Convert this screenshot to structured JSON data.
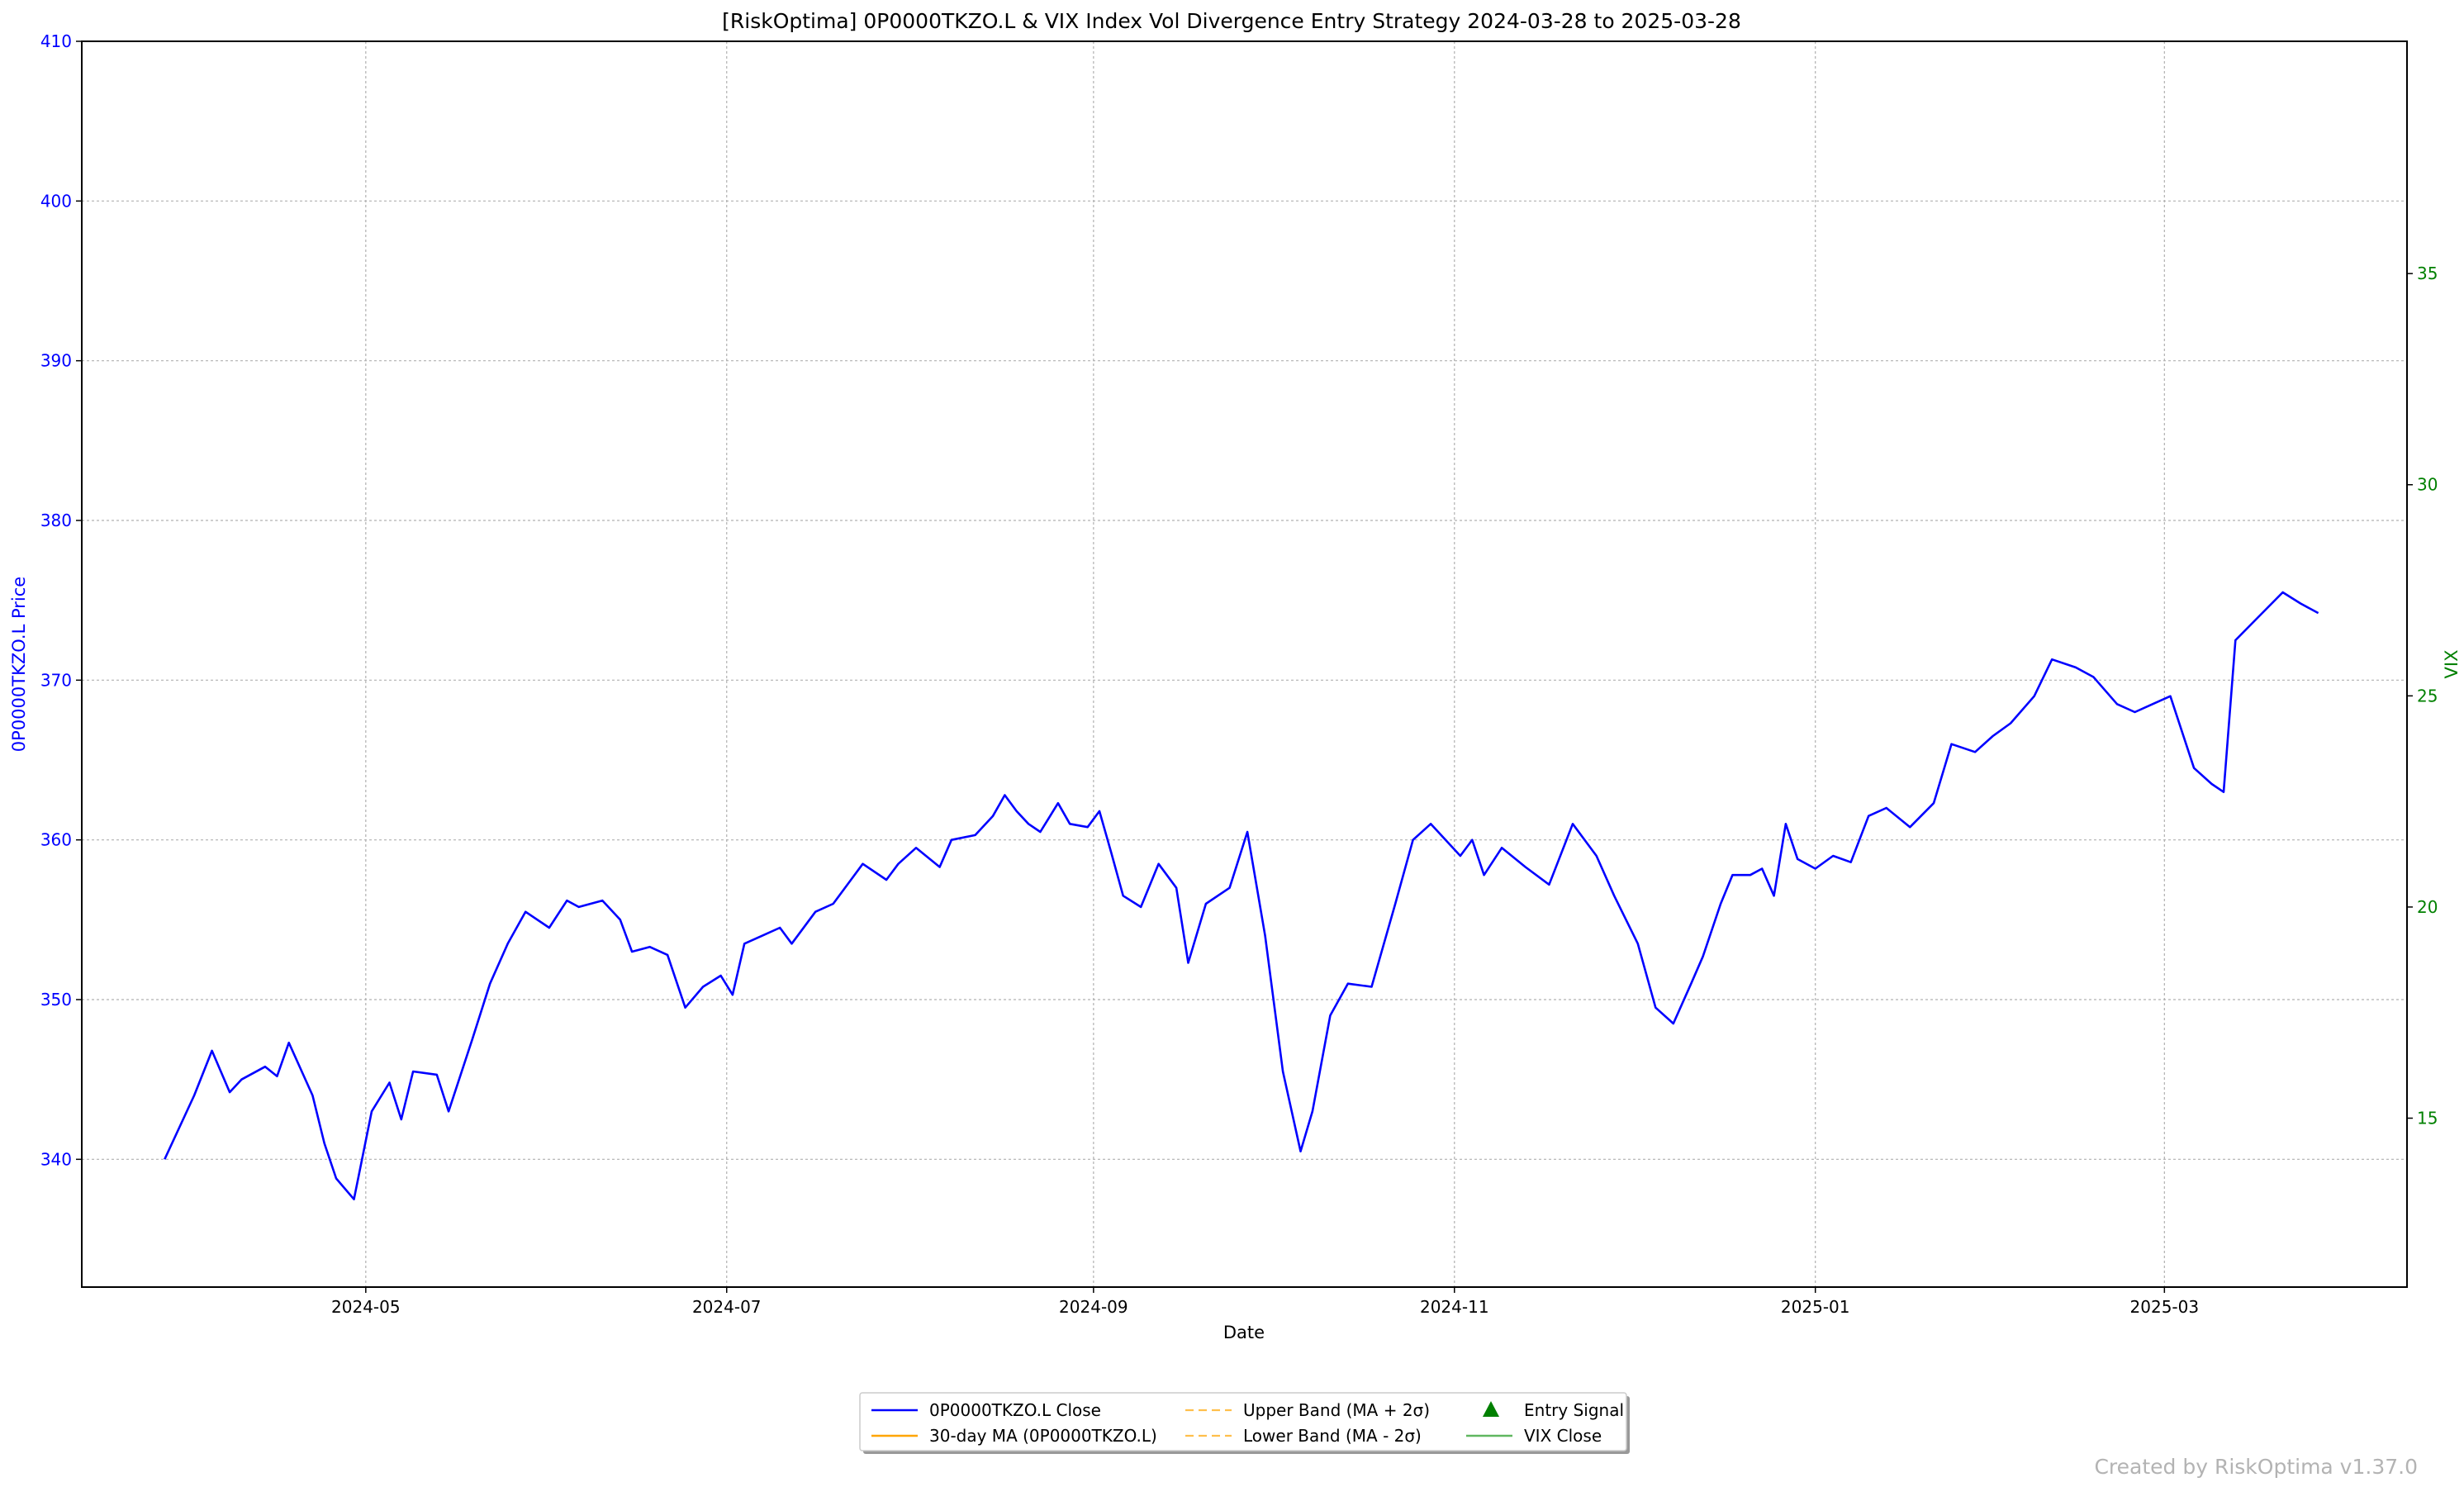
{
  "chart_data": {
    "type": "line",
    "title": "[RiskOptima] 0P0000TKZO.L & VIX Index Vol Divergence Entry Strategy 2024-03-28 to 2025-03-28",
    "xlabel": "Date",
    "ylabel_left": "0P0000TKZO.L Price",
    "ylabel_right": "VIX",
    "ylim_left": [
      332,
      410
    ],
    "ylim_right": [
      11.0,
      40.5
    ],
    "xlim": [
      "2024-03-14",
      "2025-04-11"
    ],
    "yticks_left": [
      340,
      350,
      360,
      370,
      380,
      390,
      400,
      410
    ],
    "yticks_right": [
      15,
      20,
      25,
      30,
      35
    ],
    "xticks": [
      {
        "label": "2024-05",
        "date": "2024-05-01"
      },
      {
        "label": "2024-07",
        "date": "2024-07-01"
      },
      {
        "label": "2024-09",
        "date": "2024-09-01"
      },
      {
        "label": "2024-11",
        "date": "2024-11-01"
      },
      {
        "label": "2025-01",
        "date": "2025-01-01"
      },
      {
        "label": "2025-03",
        "date": "2025-03-01"
      }
    ],
    "grid": true,
    "legend_placement": "bottom-center",
    "colors": {
      "close": "#0000ff",
      "ma": "#ffa500",
      "bands": "#ffa500",
      "vix": "#2ca02c",
      "signal": "#008000",
      "left_axis": "#0000ff",
      "right_axis": "#008000"
    },
    "legend": [
      {
        "key": "close",
        "label": "0P0000TKZO.L Close"
      },
      {
        "key": "ma",
        "label": "30-day MA (0P0000TKZO.L)"
      },
      {
        "key": "upper",
        "label": "Upper Band (MA + 2σ)"
      },
      {
        "key": "lower",
        "label": "Lower Band (MA - 2σ)"
      },
      {
        "key": "signal",
        "label": "Entry Signal"
      },
      {
        "key": "vix",
        "label": "VIX Close"
      }
    ],
    "series": [
      {
        "name": "0P0000TKZO.L Close",
        "key": "close",
        "axis": "left",
        "points": [
          [
            "2024-03-28",
            340.0
          ],
          [
            "2024-04-02",
            344.0
          ],
          [
            "2024-04-05",
            346.8
          ],
          [
            "2024-04-08",
            344.2
          ],
          [
            "2024-04-10",
            345.0
          ],
          [
            "2024-04-14",
            345.8
          ],
          [
            "2024-04-16",
            345.2
          ],
          [
            "2024-04-18",
            347.3
          ],
          [
            "2024-04-22",
            344.0
          ],
          [
            "2024-04-24",
            341.0
          ],
          [
            "2024-04-26",
            338.8
          ],
          [
            "2024-04-29",
            337.5
          ],
          [
            "2024-05-02",
            343.0
          ],
          [
            "2024-05-05",
            344.8
          ],
          [
            "2024-05-07",
            342.5
          ],
          [
            "2024-05-09",
            345.5
          ],
          [
            "2024-05-13",
            345.3
          ],
          [
            "2024-05-15",
            343.0
          ],
          [
            "2024-05-19",
            347.5
          ],
          [
            "2024-05-22",
            351.0
          ],
          [
            "2024-05-25",
            353.5
          ],
          [
            "2024-05-28",
            355.5
          ],
          [
            "2024-06-01",
            354.5
          ],
          [
            "2024-06-04",
            356.2
          ],
          [
            "2024-06-06",
            355.8
          ],
          [
            "2024-06-10",
            356.2
          ],
          [
            "2024-06-13",
            355.0
          ],
          [
            "2024-06-15",
            353.0
          ],
          [
            "2024-06-18",
            353.3
          ],
          [
            "2024-06-21",
            352.8
          ],
          [
            "2024-06-24",
            349.5
          ],
          [
            "2024-06-27",
            350.8
          ],
          [
            "2024-06-30",
            351.5
          ],
          [
            "2024-07-02",
            350.3
          ],
          [
            "2024-07-04",
            353.5
          ],
          [
            "2024-07-07",
            354.0
          ],
          [
            "2024-07-10",
            354.5
          ],
          [
            "2024-07-12",
            353.5
          ],
          [
            "2024-07-16",
            355.5
          ],
          [
            "2024-07-19",
            356.0
          ],
          [
            "2024-07-22",
            357.5
          ],
          [
            "2024-07-24",
            358.5
          ],
          [
            "2024-07-28",
            357.5
          ],
          [
            "2024-07-30",
            358.5
          ],
          [
            "2024-08-02",
            359.5
          ],
          [
            "2024-08-06",
            358.3
          ],
          [
            "2024-08-08",
            360.0
          ],
          [
            "2024-08-12",
            360.3
          ],
          [
            "2024-08-15",
            361.5
          ],
          [
            "2024-08-17",
            362.8
          ],
          [
            "2024-08-19",
            361.8
          ],
          [
            "2024-08-21",
            361.0
          ],
          [
            "2024-08-23",
            360.5
          ],
          [
            "2024-08-26",
            362.3
          ],
          [
            "2024-08-28",
            361.0
          ],
          [
            "2024-08-31",
            360.8
          ],
          [
            "2024-09-02",
            361.8
          ],
          [
            "2024-09-04",
            359.2
          ],
          [
            "2024-09-06",
            356.5
          ],
          [
            "2024-09-09",
            355.8
          ],
          [
            "2024-09-12",
            358.5
          ],
          [
            "2024-09-15",
            357.0
          ],
          [
            "2024-09-17",
            352.3
          ],
          [
            "2024-09-20",
            356.0
          ],
          [
            "2024-09-24",
            357.0
          ],
          [
            "2024-09-27",
            360.5
          ],
          [
            "2024-09-30",
            354.0
          ],
          [
            "2024-10-03",
            345.5
          ],
          [
            "2024-10-06",
            340.5
          ],
          [
            "2024-10-08",
            343.0
          ],
          [
            "2024-10-11",
            349.0
          ],
          [
            "2024-10-14",
            351.0
          ],
          [
            "2024-10-18",
            350.8
          ],
          [
            "2024-10-22",
            356.0
          ],
          [
            "2024-10-25",
            360.0
          ],
          [
            "2024-10-28",
            361.0
          ],
          [
            "2024-11-02",
            359.0
          ],
          [
            "2024-11-04",
            360.0
          ],
          [
            "2024-11-06",
            357.8
          ],
          [
            "2024-11-09",
            359.5
          ],
          [
            "2024-11-13",
            358.3
          ],
          [
            "2024-11-17",
            357.2
          ],
          [
            "2024-11-21",
            361.0
          ],
          [
            "2024-11-25",
            359.0
          ],
          [
            "2024-11-28",
            356.5
          ],
          [
            "2024-12-02",
            353.5
          ],
          [
            "2024-12-05",
            349.5
          ],
          [
            "2024-12-08",
            348.5
          ],
          [
            "2024-12-11",
            351.0
          ],
          [
            "2024-12-13",
            352.7
          ],
          [
            "2024-12-16",
            356.0
          ],
          [
            "2024-12-18",
            357.8
          ],
          [
            "2024-12-21",
            357.8
          ],
          [
            "2024-12-23",
            358.2
          ],
          [
            "2024-12-25",
            356.5
          ],
          [
            "2024-12-27",
            361.0
          ],
          [
            "2024-12-29",
            358.8
          ],
          [
            "2025-01-01",
            358.2
          ],
          [
            "2025-01-04",
            359.0
          ],
          [
            "2025-01-07",
            358.6
          ],
          [
            "2025-01-10",
            361.5
          ],
          [
            "2025-01-13",
            362.0
          ],
          [
            "2025-01-17",
            360.8
          ],
          [
            "2025-01-21",
            362.3
          ],
          [
            "2025-01-24",
            366.0
          ],
          [
            "2025-01-28",
            365.5
          ],
          [
            "2025-01-31",
            366.5
          ],
          [
            "2025-02-03",
            367.3
          ],
          [
            "2025-02-07",
            369.0
          ],
          [
            "2025-02-10",
            371.3
          ],
          [
            "2025-02-14",
            370.8
          ],
          [
            "2025-02-17",
            370.2
          ],
          [
            "2025-02-21",
            368.5
          ],
          [
            "2025-02-24",
            368.0
          ],
          [
            "2025-02-27",
            368.5
          ],
          [
            "2025-03-02",
            369.0
          ],
          [
            "2025-03-06",
            364.5
          ],
          [
            "2025-03-09",
            363.5
          ],
          [
            "2025-03-11",
            363.0
          ],
          [
            "2025-03-13",
            372.5
          ],
          [
            "2025-03-17",
            374.0
          ],
          [
            "2025-03-21",
            375.5
          ],
          [
            "2025-03-24",
            374.8
          ],
          [
            "2025-03-27",
            374.2
          ]
        ]
      }
    ]
  },
  "credit": "Created by RiskOptima v1.37.0"
}
